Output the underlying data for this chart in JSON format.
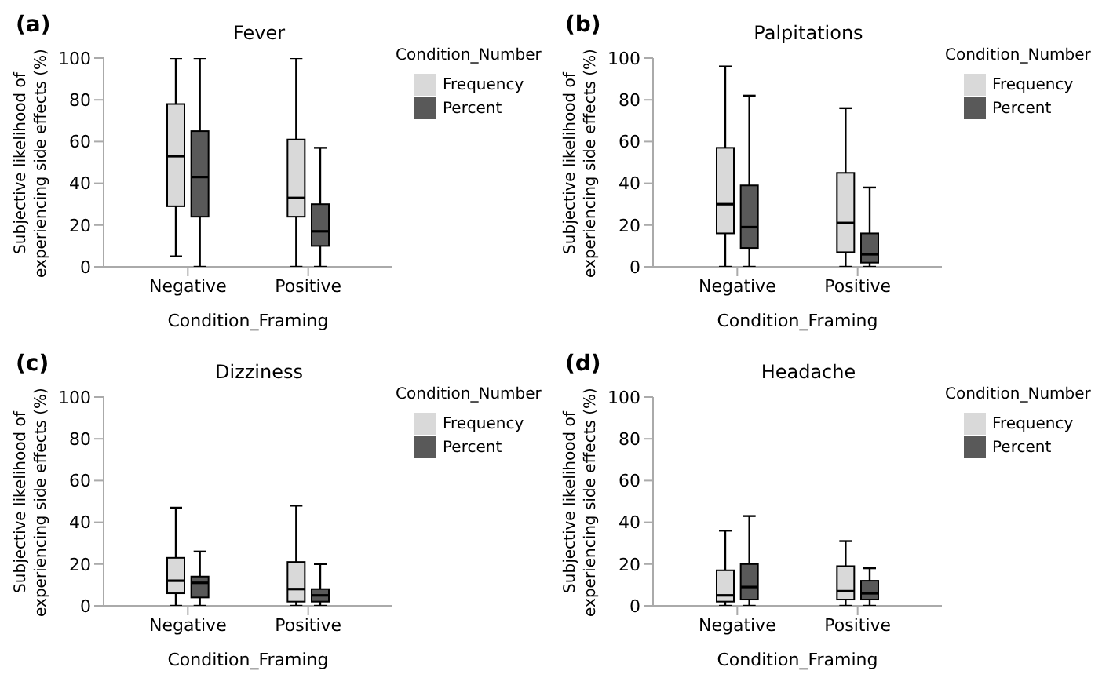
{
  "chart_data": [
    {
      "type": "box",
      "title": "Fever",
      "annotations": [
        "(a)"
      ],
      "xlabel": "Condition_Framing",
      "ylabel": "Subjective likelihood of experiencing side effects (%)",
      "legend_title": "Condition_Number",
      "legend": "right",
      "categories": [
        "Negative",
        "Positive"
      ],
      "ylim": [
        0,
        100
      ],
      "yticks": [
        0,
        20,
        40,
        60,
        80,
        100
      ],
      "series": [
        {
          "name": "Frequency",
          "color": "#d9d9d9",
          "boxes": [
            {
              "low": 5,
              "q1": 29,
              "median": 53,
              "q3": 78,
              "high": 100
            },
            {
              "low": 0,
              "q1": 24,
              "median": 33,
              "q3": 61,
              "high": 100
            }
          ]
        },
        {
          "name": "Percent",
          "color": "#595959",
          "boxes": [
            {
              "low": 0,
              "q1": 24,
              "median": 43,
              "q3": 65,
              "high": 100
            },
            {
              "low": 0,
              "q1": 10,
              "median": 17,
              "q3": 30,
              "high": 57
            }
          ]
        }
      ]
    },
    {
      "type": "box",
      "title": "Palpitations",
      "annotations": [
        "(b)"
      ],
      "xlabel": "Condition_Framing",
      "ylabel": "Subjective likelihood of experiencing side effects (%)",
      "legend_title": "Condition_Number",
      "legend": "right",
      "categories": [
        "Negative",
        "Positive"
      ],
      "ylim": [
        0,
        100
      ],
      "yticks": [
        0,
        20,
        40,
        60,
        80,
        100
      ],
      "series": [
        {
          "name": "Frequency",
          "color": "#d9d9d9",
          "boxes": [
            {
              "low": 0,
              "q1": 16,
              "median": 30,
              "q3": 57,
              "high": 96
            },
            {
              "low": 0,
              "q1": 7,
              "median": 21,
              "q3": 45,
              "high": 76
            }
          ]
        },
        {
          "name": "Percent",
          "color": "#595959",
          "boxes": [
            {
              "low": 0,
              "q1": 9,
              "median": 19,
              "q3": 39,
              "high": 82
            },
            {
              "low": 0,
              "q1": 2,
              "median": 6,
              "q3": 16,
              "high": 38
            }
          ]
        }
      ]
    },
    {
      "type": "box",
      "title": "Dizziness",
      "annotations": [
        "(c)"
      ],
      "xlabel": "Condition_Framing",
      "ylabel": "Subjective likelihood of experiencing side effects (%)",
      "legend_title": "Condition_Number",
      "legend": "right",
      "categories": [
        "Negative",
        "Positive"
      ],
      "ylim": [
        0,
        100
      ],
      "yticks": [
        0,
        20,
        40,
        60,
        80,
        100
      ],
      "series": [
        {
          "name": "Frequency",
          "color": "#d9d9d9",
          "boxes": [
            {
              "low": 0,
              "q1": 6,
              "median": 12,
              "q3": 23,
              "high": 47
            },
            {
              "low": 0,
              "q1": 2,
              "median": 8,
              "q3": 21,
              "high": 48
            }
          ]
        },
        {
          "name": "Percent",
          "color": "#595959",
          "boxes": [
            {
              "low": 0,
              "q1": 4,
              "median": 11,
              "q3": 14,
              "high": 26
            },
            {
              "low": 0,
              "q1": 2,
              "median": 5,
              "q3": 8,
              "high": 20
            }
          ]
        }
      ]
    },
    {
      "type": "box",
      "title": "Headache",
      "annotations": [
        "(d)"
      ],
      "xlabel": "Condition_Framing",
      "ylabel": "Subjective likelihood of experiencing side effects (%)",
      "legend_title": "Condition_Number",
      "legend": "right",
      "categories": [
        "Negative",
        "Positive"
      ],
      "ylim": [
        0,
        100
      ],
      "yticks": [
        0,
        20,
        40,
        60,
        80,
        100
      ],
      "series": [
        {
          "name": "Frequency",
          "color": "#d9d9d9",
          "boxes": [
            {
              "low": 0,
              "q1": 2,
              "median": 5,
              "q3": 17,
              "high": 36
            },
            {
              "low": 0,
              "q1": 3,
              "median": 7,
              "q3": 19,
              "high": 31
            }
          ]
        },
        {
          "name": "Percent",
          "color": "#595959",
          "boxes": [
            {
              "low": 0,
              "q1": 3,
              "median": 9,
              "q3": 20,
              "high": 43
            },
            {
              "low": 0,
              "q1": 3,
              "median": 6,
              "q3": 12,
              "high": 18
            }
          ]
        }
      ]
    }
  ]
}
